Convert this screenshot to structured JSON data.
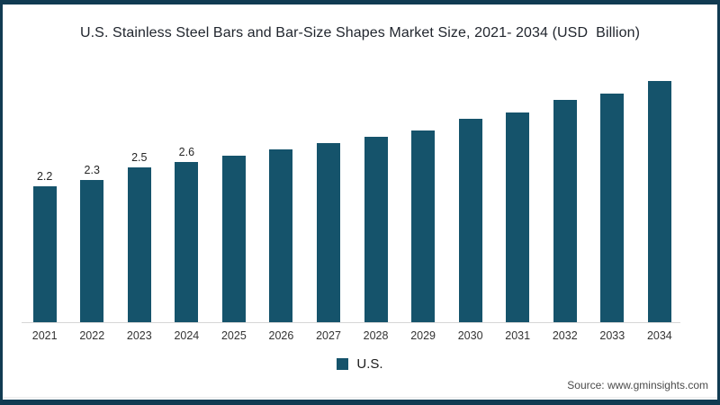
{
  "frame": {
    "border_color": "#113B52",
    "background": "#ffffff"
  },
  "chart_data": {
    "type": "bar",
    "title": "U.S. Stainless Steel Bars and Bar-Size Shapes Market Size, 2021- 2034 (USD  Billion)",
    "categories": [
      "2021",
      "2022",
      "2023",
      "2024",
      "2025",
      "2026",
      "2027",
      "2028",
      "2029",
      "2030",
      "2031",
      "2032",
      "2033",
      "2034"
    ],
    "series": [
      {
        "name": "U.S.",
        "color": "#15536B",
        "values": [
          2.2,
          2.3,
          2.5,
          2.6,
          2.7,
          2.8,
          2.9,
          3.0,
          3.1,
          3.3,
          3.4,
          3.6,
          3.7,
          3.9
        ]
      }
    ],
    "data_labels": [
      "2.2",
      "2.3",
      "2.5",
      "2.6",
      "",
      "",
      "",
      "",
      "",
      "",
      "",
      "",
      "",
      ""
    ],
    "xlabel": "",
    "ylabel": "",
    "ylim": [
      0,
      4.2
    ],
    "grid": false,
    "legend": {
      "position": "bottom",
      "entries": [
        "U.S."
      ]
    },
    "axis_line_color": "#d6d6d6"
  },
  "source": {
    "label": "Source: www.gminsights.com"
  }
}
